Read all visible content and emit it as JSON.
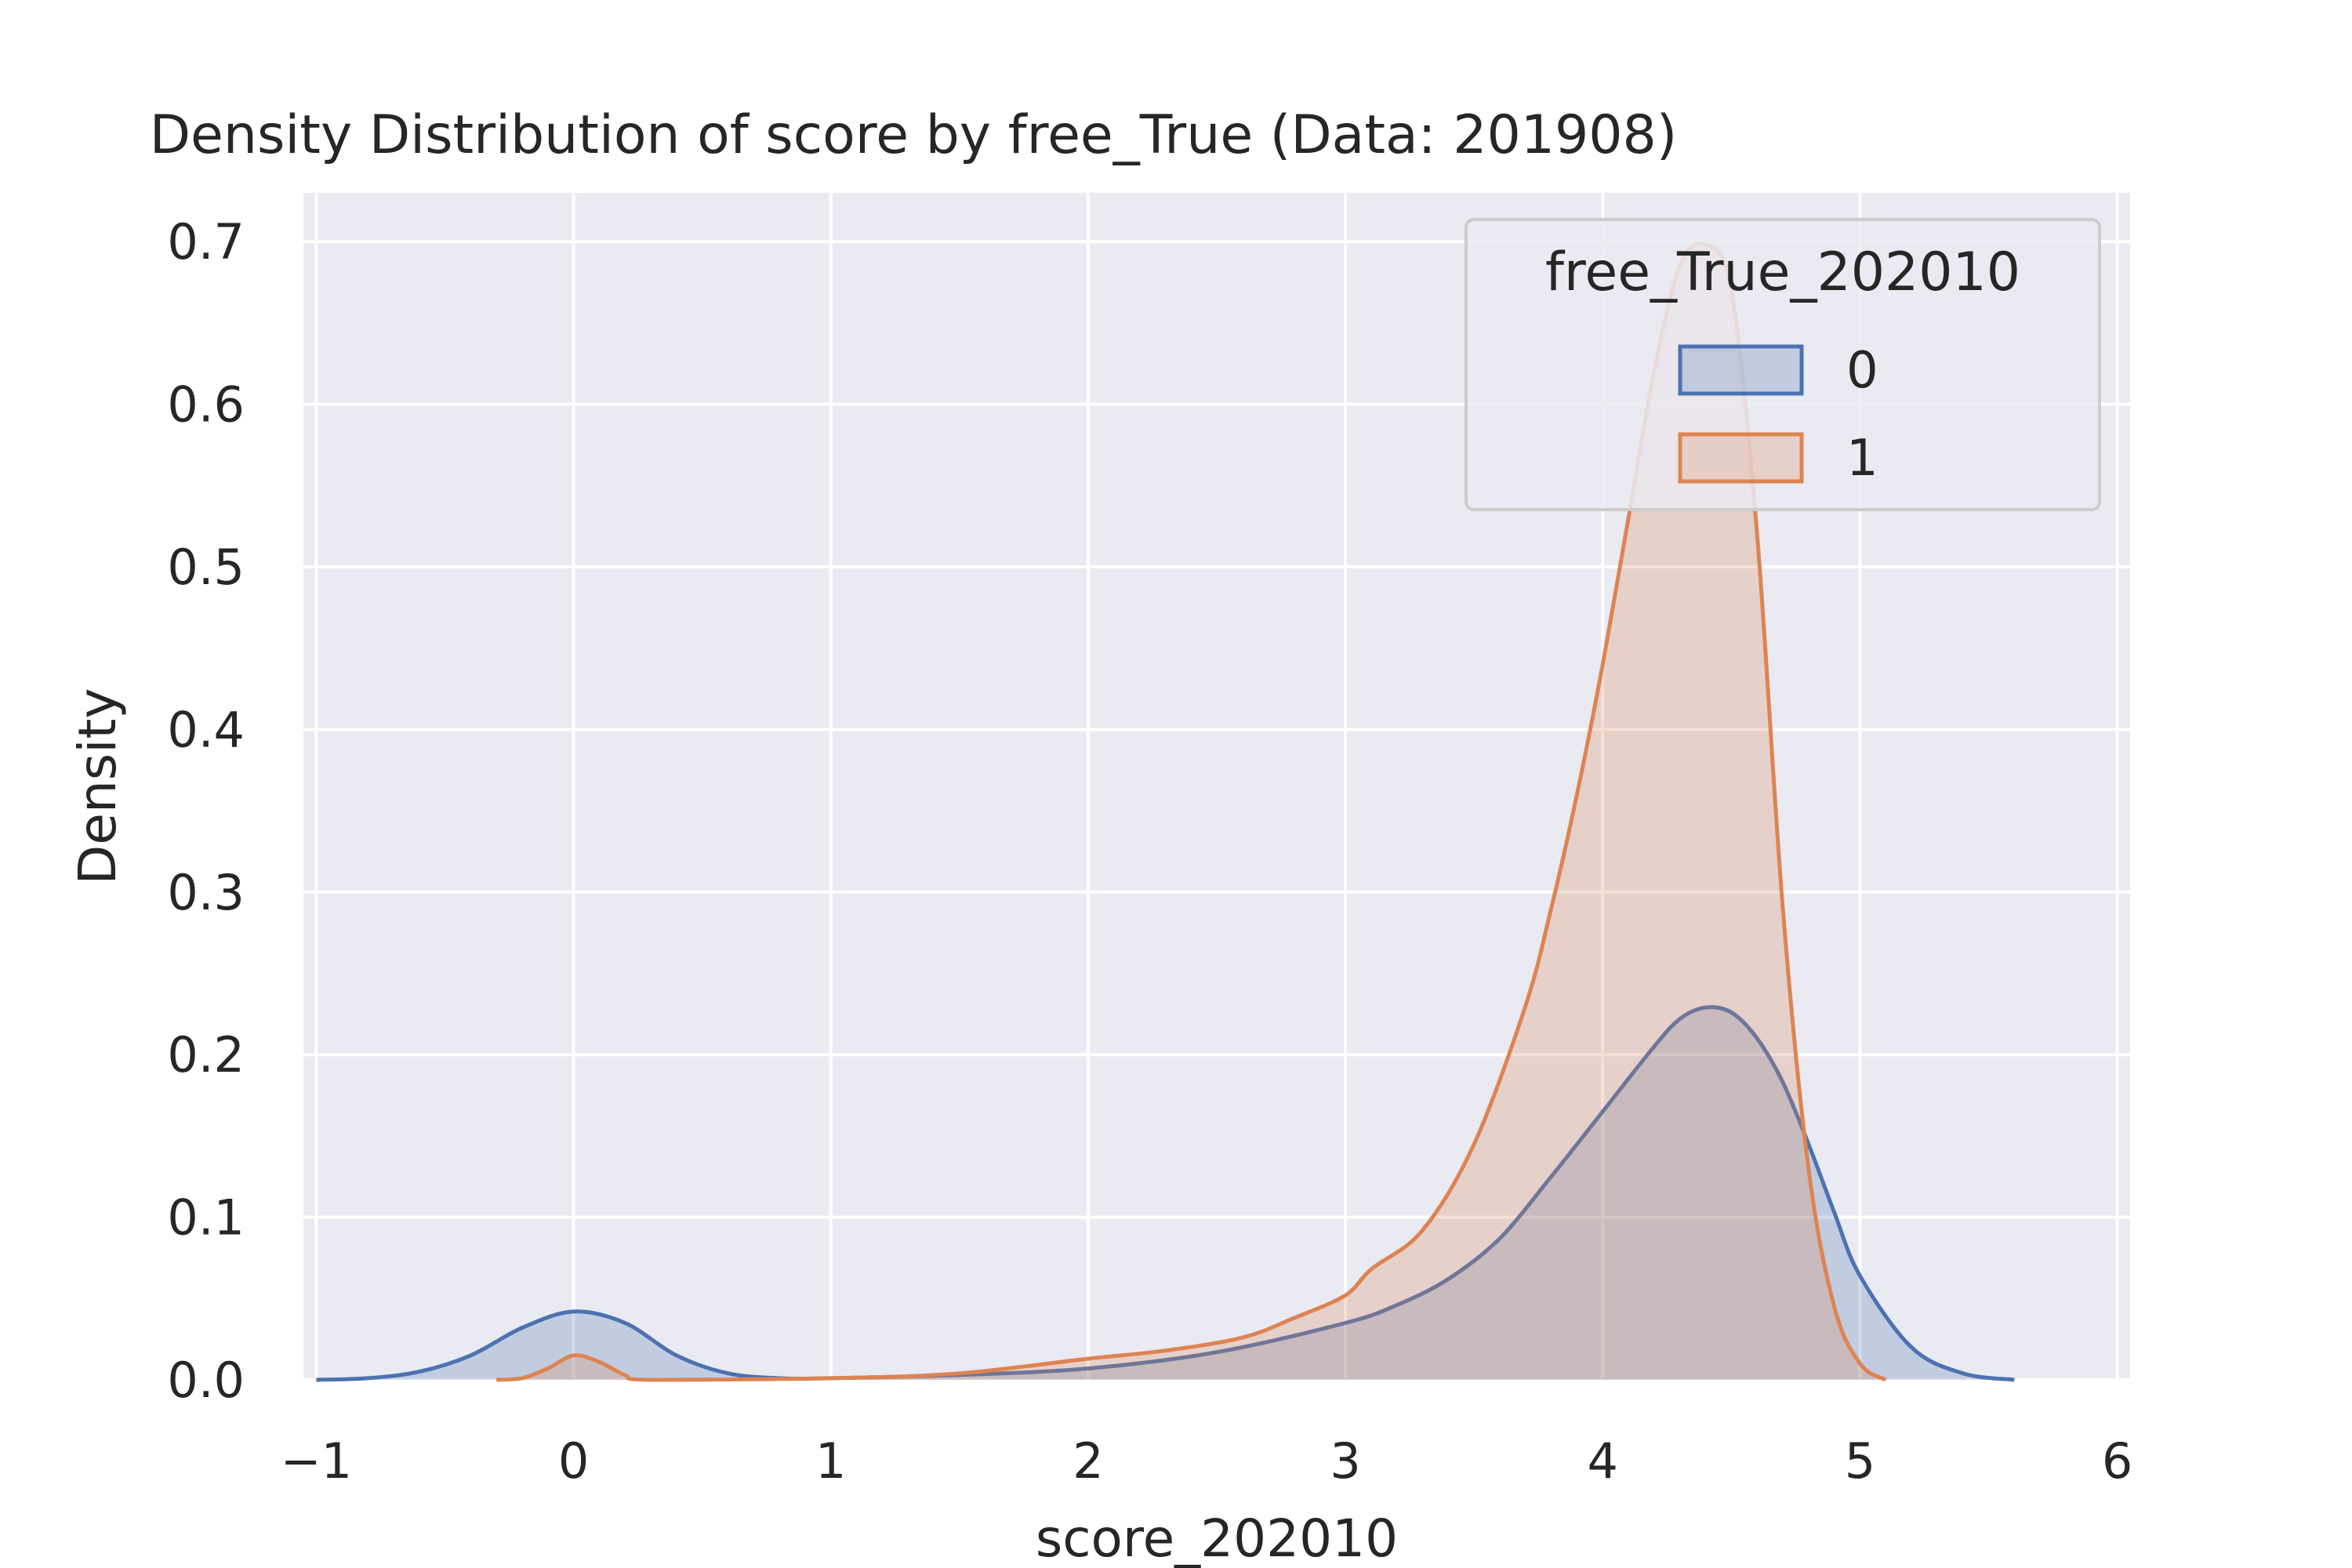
{
  "chart_data": {
    "type": "area",
    "title": "Density Distribution of score by free_True (Data: 201908)",
    "xlabel": "score_202010",
    "ylabel": "Density",
    "xlim": [
      -1.05,
      6.05
    ],
    "ylim": [
      0,
      0.73
    ],
    "xticks": [
      -1,
      0,
      1,
      2,
      3,
      4,
      5,
      6
    ],
    "xtick_labels": [
      "−1",
      "0",
      "1",
      "2",
      "3",
      "4",
      "5",
      "6"
    ],
    "yticks": [
      0.0,
      0.1,
      0.2,
      0.3,
      0.4,
      0.5,
      0.6,
      0.7
    ],
    "ytick_labels": [
      "0.0",
      "0.1",
      "0.2",
      "0.3",
      "0.4",
      "0.5",
      "0.6",
      "0.7"
    ],
    "grid": true,
    "legend": {
      "title": "free_True_202010",
      "placement": "top-right"
    },
    "series": [
      {
        "name": "0",
        "color": "#4c72b0",
        "fill": "rgba(76,114,176,0.25)",
        "x": [
          -1.0,
          -0.8,
          -0.6,
          -0.4,
          -0.2,
          0.0,
          0.2,
          0.4,
          0.6,
          0.8,
          1.0,
          1.5,
          2.0,
          2.5,
          3.0,
          3.2,
          3.4,
          3.6,
          3.8,
          4.0,
          4.2,
          4.3,
          4.4,
          4.5,
          4.6,
          4.7,
          4.8,
          4.9,
          5.0,
          5.2,
          5.4,
          5.6
        ],
        "y": [
          0.0,
          0.001,
          0.005,
          0.015,
          0.032,
          0.042,
          0.035,
          0.015,
          0.004,
          0.001,
          0.001,
          0.003,
          0.007,
          0.017,
          0.035,
          0.046,
          0.062,
          0.087,
          0.125,
          0.165,
          0.205,
          0.222,
          0.229,
          0.226,
          0.21,
          0.183,
          0.145,
          0.103,
          0.064,
          0.02,
          0.004,
          0.0
        ]
      },
      {
        "name": "1",
        "color": "#dd8452",
        "fill": "rgba(221,132,82,0.25)",
        "x": [
          -0.3,
          -0.2,
          -0.1,
          0.0,
          0.1,
          0.2,
          0.3,
          1.0,
          1.5,
          2.0,
          2.3,
          2.6,
          2.8,
          3.0,
          3.1,
          3.3,
          3.5,
          3.7,
          3.8,
          3.9,
          4.0,
          4.1,
          4.2,
          4.3,
          4.4,
          4.5,
          4.6,
          4.7,
          4.8,
          4.9,
          5.0,
          5.1
        ],
        "y": [
          0.0,
          0.001,
          0.007,
          0.015,
          0.011,
          0.003,
          0.0,
          0.001,
          0.004,
          0.013,
          0.018,
          0.026,
          0.038,
          0.052,
          0.068,
          0.092,
          0.145,
          0.23,
          0.29,
          0.36,
          0.44,
          0.53,
          0.62,
          0.685,
          0.698,
          0.67,
          0.52,
          0.29,
          0.13,
          0.045,
          0.01,
          0.0
        ]
      }
    ]
  }
}
